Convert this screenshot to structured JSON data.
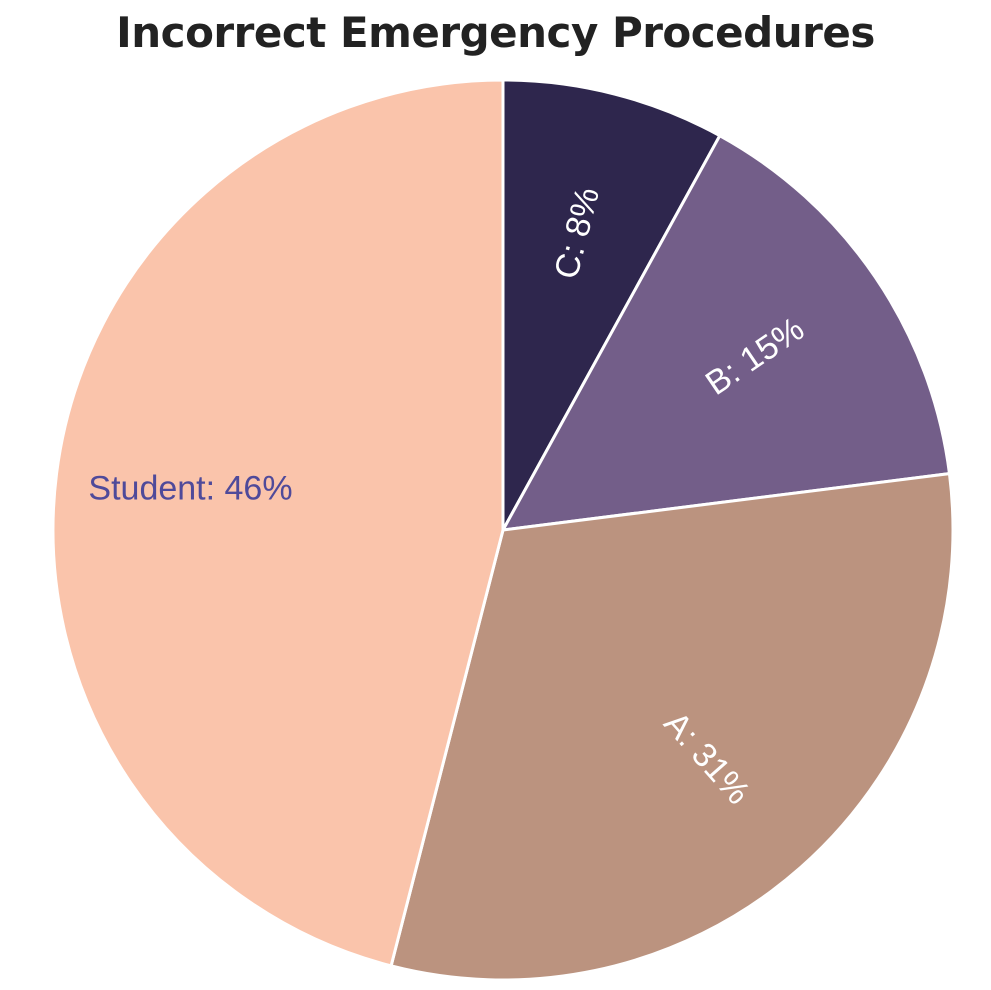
{
  "chart_data": {
    "type": "pie",
    "title": "Incorrect Emergency Procedures",
    "slices": [
      {
        "name": "C",
        "value": 8,
        "label": "C: 8%",
        "color": "#2e264d",
        "label_color": "#ffffff"
      },
      {
        "name": "B",
        "value": 15,
        "label": "B: 15%",
        "color": "#735e89",
        "label_color": "#ffffff"
      },
      {
        "name": "A",
        "value": 31,
        "label": "A: 31%",
        "color": "#bb937f",
        "label_color": "#ffffff"
      },
      {
        "name": "Student",
        "value": 46,
        "label": "Student: 46%",
        "color": "#fac4ab",
        "label_color": "#4f4a9a"
      }
    ]
  }
}
